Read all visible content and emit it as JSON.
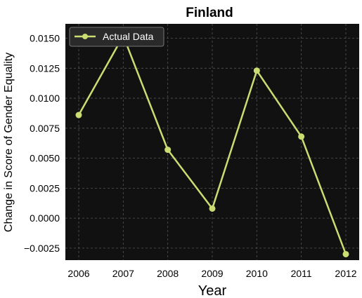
{
  "chart_data": {
    "type": "line",
    "title": "Finland",
    "xlabel": "Year",
    "ylabel": "Change in Score of Gender Equality",
    "x": [
      2006,
      2007,
      2008,
      2009,
      2010,
      2011,
      2012
    ],
    "xtick_labels": [
      "2006",
      "2007",
      "2008",
      "2009",
      "2010",
      "2011",
      "2012"
    ],
    "ytick_values": [
      -0.0025,
      0.0,
      0.0025,
      0.005,
      0.0075,
      0.01,
      0.0125,
      0.015
    ],
    "ytick_labels": [
      "−0.0025",
      "0.0000",
      "0.0025",
      "0.0050",
      "0.0075",
      "0.0100",
      "0.0125",
      "0.0150"
    ],
    "ylim": [
      -0.0035,
      0.0162
    ],
    "xlim": [
      2005.7,
      2012.3
    ],
    "grid": true,
    "legend_position": "top-left",
    "series": [
      {
        "name": "Actual Data",
        "values": [
          0.0086,
          0.0152,
          0.0057,
          0.0008,
          0.0123,
          0.0068,
          -0.003
        ],
        "color": "#c9dd72"
      }
    ],
    "colors": {
      "plot_background": "#111111",
      "grid": "#555555",
      "legend_background": "#2a2a2a",
      "legend_border": "#777777"
    }
  }
}
